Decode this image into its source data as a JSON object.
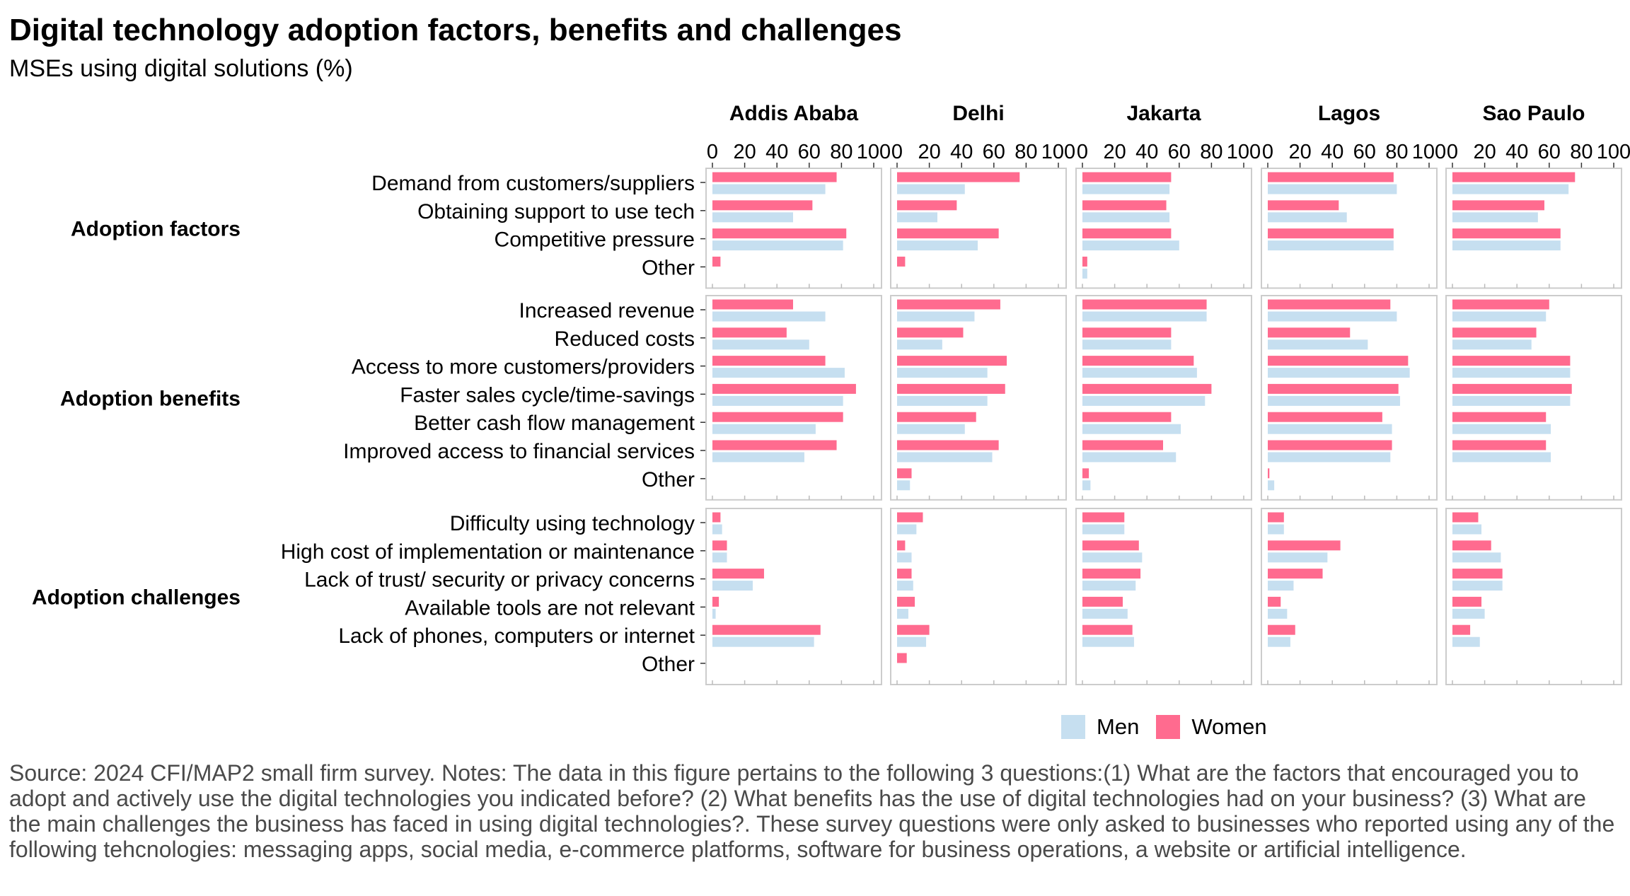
{
  "title": "Digital technology adoption factors, benefits and challenges",
  "subtitle": "MSEs using digital solutions (%)",
  "footnote": "Source: 2024 CFI/MAP2 small firm survey. Notes: The data in this figure pertains to the following 3 questions:(1) What are the factors that encouraged you to adopt and actively use the digital technologies you indicated before? (2) What benefits has the use of digital technologies had on your business? (3) What are the main challenges the business has faced in using digital technologies?. These survey questions were only asked to businesses who reported using any of the following tehcnologies: messaging apps, social media, e-commerce platforms, software for business operations, a website or artificial intelligence.",
  "colors": {
    "men": "#c6dff0",
    "women": "#ff6b8f",
    "panel_border": "#cccccc"
  },
  "legend": [
    {
      "key": "men",
      "label": "Men"
    },
    {
      "key": "women",
      "label": "Women"
    }
  ],
  "chart_data": {
    "type": "bar",
    "orientation": "horizontal",
    "xlim": [
      0,
      100
    ],
    "x_ticks": [
      0,
      20,
      40,
      60,
      80,
      100
    ],
    "x_tick_labels": [
      "0",
      "20",
      "40",
      "60",
      "80",
      "100"
    ],
    "series_names": [
      "Men",
      "Women"
    ],
    "cities": [
      "Addis Ababa",
      "Delhi",
      "Jakarta",
      "Lagos",
      "Sao Paulo"
    ],
    "groups": [
      {
        "name": "Adoption factors",
        "categories": [
          "Demand from customers/suppliers",
          "Obtaining support to use tech",
          "Competitive pressure",
          "Other"
        ],
        "values": {
          "Addis Ababa": {
            "women": [
              77,
              62,
              83,
              5
            ],
            "men": [
              70,
              50,
              81,
              0
            ]
          },
          "Delhi": {
            "women": [
              76,
              37,
              63,
              5
            ],
            "men": [
              42,
              25,
              50,
              0
            ]
          },
          "Jakarta": {
            "women": [
              55,
              52,
              55,
              3
            ],
            "men": [
              54,
              54,
              60,
              3
            ]
          },
          "Lagos": {
            "women": [
              78,
              44,
              78,
              0
            ],
            "men": [
              80,
              49,
              78,
              0
            ]
          },
          "Sao Paulo": {
            "women": [
              76,
              57,
              67,
              0
            ],
            "men": [
              72,
              53,
              67,
              0
            ]
          }
        }
      },
      {
        "name": "Adoption benefits",
        "categories": [
          "Increased revenue",
          "Reduced costs",
          "Access to more customers/providers",
          "Faster sales cycle/time-savings",
          "Better cash flow management",
          "Improved access to financial services",
          "Other"
        ],
        "values": {
          "Addis Ababa": {
            "women": [
              50,
              46,
              70,
              89,
              81,
              77,
              0
            ],
            "men": [
              70,
              60,
              82,
              81,
              64,
              57,
              0
            ]
          },
          "Delhi": {
            "women": [
              64,
              41,
              68,
              67,
              49,
              63,
              9
            ],
            "men": [
              48,
              28,
              56,
              56,
              42,
              59,
              8
            ]
          },
          "Jakarta": {
            "women": [
              77,
              55,
              69,
              80,
              55,
              50,
              4
            ],
            "men": [
              77,
              55,
              71,
              76,
              61,
              58,
              5
            ]
          },
          "Lagos": {
            "women": [
              76,
              51,
              87,
              81,
              71,
              77,
              1
            ],
            "men": [
              80,
              62,
              88,
              82,
              77,
              76,
              4
            ]
          },
          "Sao Paulo": {
            "women": [
              60,
              52,
              73,
              74,
              58,
              58,
              0
            ],
            "men": [
              58,
              49,
              73,
              73,
              61,
              61,
              0
            ]
          }
        }
      },
      {
        "name": "Adoption challenges",
        "categories": [
          "Difficulty using technology",
          "High cost of implementation or maintenance",
          "Lack of trust/ security or privacy concerns",
          "Available tools are not relevant",
          "Lack of phones, computers or internet",
          "Other"
        ],
        "values": {
          "Addis Ababa": {
            "women": [
              5,
              9,
              32,
              4,
              67,
              0
            ],
            "men": [
              6,
              9,
              25,
              2,
              63,
              0
            ]
          },
          "Delhi": {
            "women": [
              16,
              5,
              9,
              11,
              20,
              6
            ],
            "men": [
              12,
              9,
              10,
              7,
              18,
              0
            ]
          },
          "Jakarta": {
            "women": [
              26,
              35,
              36,
              25,
              31,
              0
            ],
            "men": [
              26,
              37,
              33,
              28,
              32,
              0
            ]
          },
          "Lagos": {
            "women": [
              10,
              45,
              34,
              8,
              17,
              0
            ],
            "men": [
              10,
              37,
              16,
              12,
              14,
              0
            ]
          },
          "Sao Paulo": {
            "women": [
              16,
              24,
              31,
              18,
              11,
              0
            ],
            "men": [
              18,
              30,
              31,
              20,
              17,
              0
            ]
          }
        }
      }
    ]
  }
}
